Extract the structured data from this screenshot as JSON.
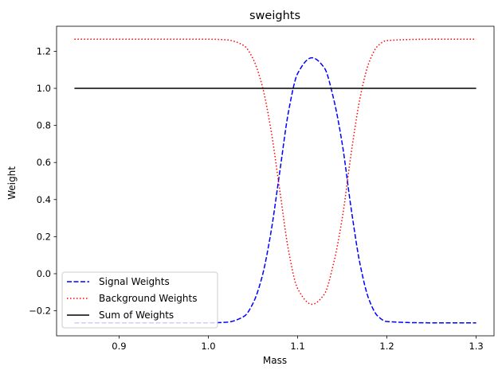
{
  "chart_data": {
    "type": "line",
    "title": "sweights",
    "xlabel": "Mass",
    "ylabel": "Weight",
    "xlim": [
      0.83,
      1.32
    ],
    "ylim": [
      -0.335,
      1.335
    ],
    "grid": false,
    "x_ticks": [
      0.9,
      1.0,
      1.1,
      1.2,
      1.3
    ],
    "x_tick_labels": [
      "0.9",
      "1.0",
      "1.1",
      "1.2",
      "1.3"
    ],
    "y_ticks": [
      -0.2,
      0.0,
      0.2,
      0.4,
      0.6,
      0.8,
      1.0,
      1.2
    ],
    "y_tick_labels": [
      "−0.2",
      "0.0",
      "0.2",
      "0.4",
      "0.6",
      "0.8",
      "1.0",
      "1.2"
    ],
    "legend": {
      "position": "bottom-left"
    },
    "series": [
      {
        "name": "Signal Weights",
        "color": "#0000ff",
        "style": "dashed",
        "x": [
          0.85,
          0.9,
          0.95,
          1.0,
          1.02,
          1.04,
          1.05,
          1.06,
          1.07,
          1.08,
          1.09,
          1.1,
          1.116,
          1.13,
          1.14,
          1.15,
          1.16,
          1.17,
          1.18,
          1.19,
          1.2,
          1.25,
          1.3
        ],
        "y": [
          -0.265,
          -0.265,
          -0.265,
          -0.265,
          -0.262,
          -0.23,
          -0.16,
          -0.02,
          0.22,
          0.55,
          0.88,
          1.08,
          1.165,
          1.11,
          0.95,
          0.7,
          0.35,
          0.05,
          -0.14,
          -0.23,
          -0.258,
          -0.265,
          -0.265
        ]
      },
      {
        "name": "Background Weights",
        "color": "#ff0000",
        "style": "dotted",
        "x": [
          0.85,
          0.9,
          0.95,
          1.0,
          1.02,
          1.04,
          1.05,
          1.06,
          1.07,
          1.08,
          1.09,
          1.1,
          1.116,
          1.13,
          1.14,
          1.15,
          1.16,
          1.17,
          1.18,
          1.19,
          1.2,
          1.25,
          1.3
        ],
        "y": [
          1.265,
          1.265,
          1.265,
          1.265,
          1.262,
          1.23,
          1.16,
          1.02,
          0.78,
          0.45,
          0.12,
          -0.08,
          -0.165,
          -0.11,
          0.05,
          0.3,
          0.65,
          0.95,
          1.14,
          1.23,
          1.258,
          1.265,
          1.265
        ]
      },
      {
        "name": "Sum of Weights",
        "color": "#000000",
        "style": "solid",
        "x": [
          0.85,
          1.3
        ],
        "y": [
          1.0,
          1.0
        ]
      }
    ]
  }
}
